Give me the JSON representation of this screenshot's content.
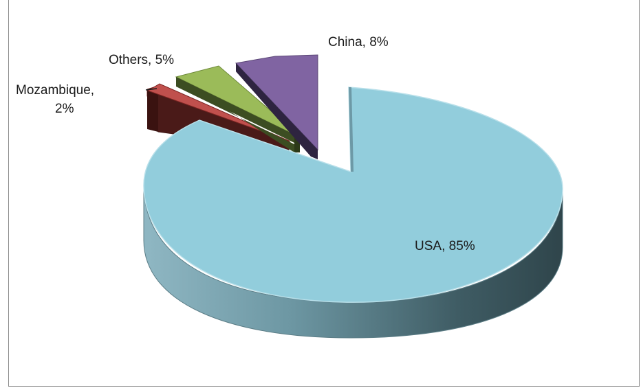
{
  "chart_data": {
    "type": "pie",
    "style": "3d-exploded",
    "title": "",
    "slices": [
      {
        "label": "USA",
        "value": 85,
        "display": "USA, 85%",
        "color": "#92cddc",
        "side_color": "#5f8a96"
      },
      {
        "label": "Mozambique",
        "value": 2,
        "display_lines": [
          "Mozambique,",
          "2%"
        ],
        "color": "#c0504d",
        "side_color": "#4a1a18"
      },
      {
        "label": "Others",
        "value": 5,
        "display": "Others, 5%",
        "color": "#9bbb59",
        "side_color": "#3c4d22"
      },
      {
        "label": "China",
        "value": 8,
        "display": "China, 8%",
        "color": "#8064a2",
        "side_color": "#2e2440"
      }
    ],
    "legend": "none",
    "data_labels": "category-and-percent"
  }
}
